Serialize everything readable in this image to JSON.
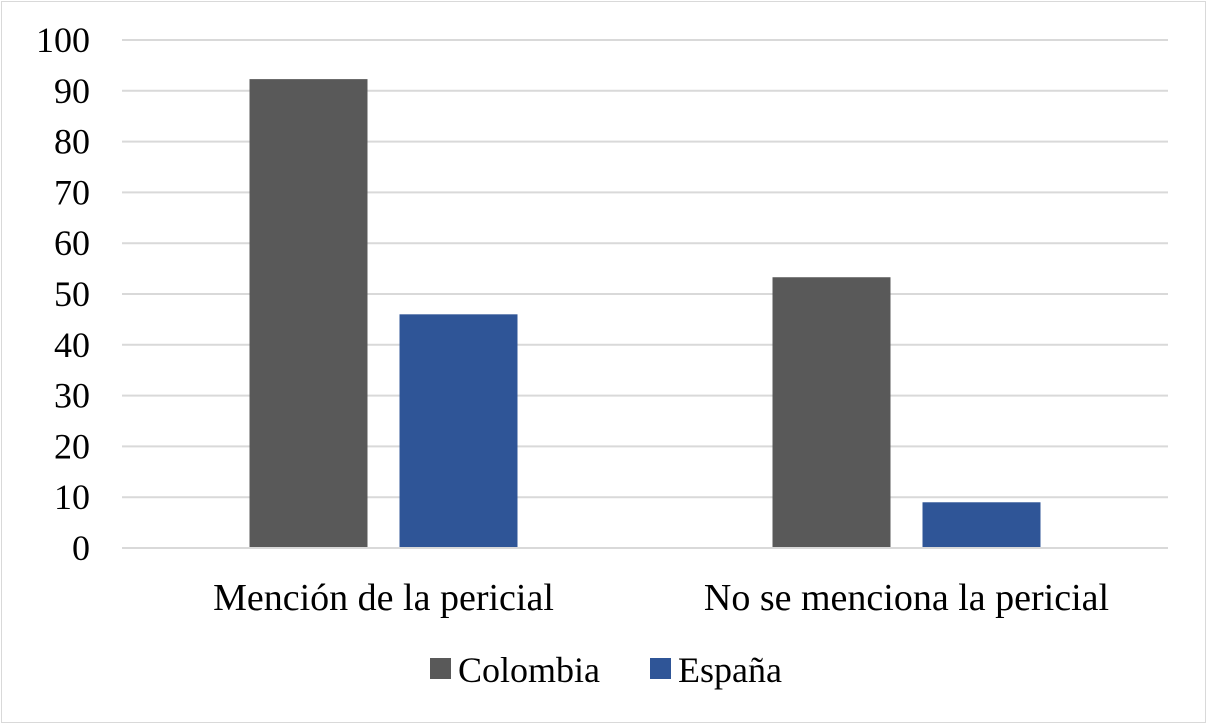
{
  "chart_data": {
    "type": "bar",
    "title": "",
    "xlabel": "",
    "ylabel": "",
    "categories": [
      "Mención de la pericial",
      "No se menciona la pericial"
    ],
    "series": [
      {
        "name": "Colombia",
        "color": "#595959",
        "values": [
          92.3,
          53.3
        ]
      },
      {
        "name": "España",
        "color": "#2f5597",
        "values": [
          46,
          9
        ]
      }
    ],
    "ylim": [
      0,
      100
    ],
    "yticks": [
      0,
      10,
      20,
      30,
      40,
      50,
      60,
      70,
      80,
      90,
      100
    ],
    "grid": true,
    "legend": "bottom-center"
  }
}
